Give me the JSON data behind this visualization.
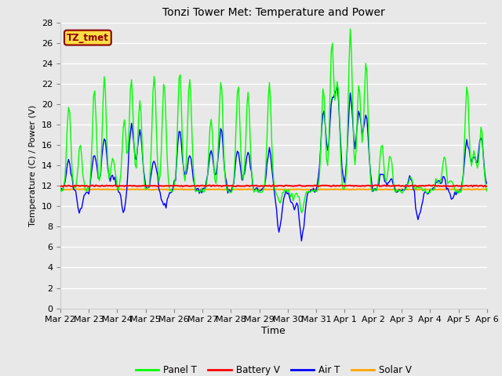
{
  "title": "Tonzi Tower Met: Temperature and Power",
  "ylabel": "Temperature (C) / Power (V)",
  "xlabel": "Time",
  "ylim": [
    0,
    28
  ],
  "yticks": [
    0,
    2,
    4,
    6,
    8,
    10,
    12,
    14,
    16,
    18,
    20,
    22,
    24,
    26,
    28
  ],
  "bg_color": "#e8e8e8",
  "grid_color": "#ffffff",
  "annotation_text": "TZ_tmet",
  "annotation_bg": "#ffdd44",
  "annotation_border": "#8b0000",
  "annotation_text_color": "#8b0000",
  "legend_entries": [
    "Panel T",
    "Battery V",
    "Air T",
    "Solar V"
  ],
  "legend_colors": [
    "#00ff00",
    "#ff0000",
    "#0000ff",
    "#ffa500"
  ],
  "xtick_labels": [
    "Mar 22",
    "Mar 23",
    "Mar 24",
    "Mar 25",
    "Mar 26",
    "Mar 27",
    "Mar 28",
    "Mar 29",
    "Mar 30",
    "Mar 31",
    "Apr 1",
    "Apr 2",
    "Apr 3",
    "Apr 4",
    "Apr 5",
    "Apr 6"
  ],
  "n_days": 15,
  "n_points": 360,
  "panel_base": 11.5,
  "air_base": 11.5,
  "battery_mean": 12.0,
  "solar_mean": 11.65
}
